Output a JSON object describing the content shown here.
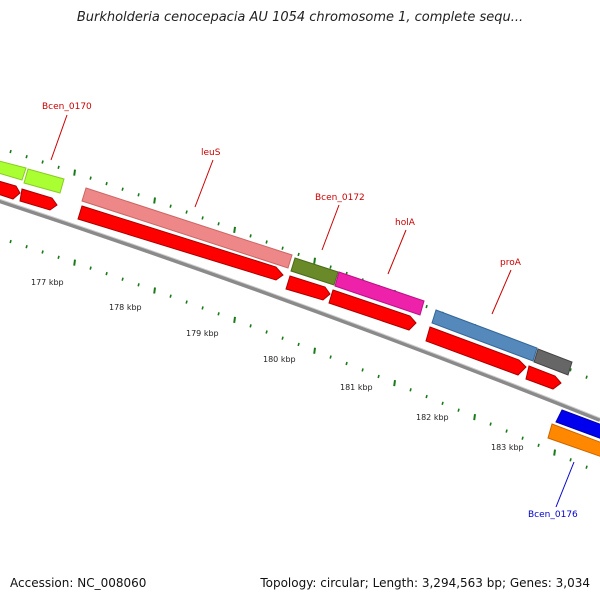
{
  "title": "Burkholderia cenocepacia AU 1054 chromosome 1, complete sequ...",
  "footer": {
    "accession_label": "Accession:",
    "accession": "NC_008060",
    "topology_label": "Topology:",
    "topology": "circular",
    "length_label": "Length:",
    "length": "3,294,563 bp",
    "genes_label": "Genes:",
    "genes": "3,034"
  },
  "ruler": {
    "unit": "kbp",
    "labels": [
      "177 kbp",
      "178 kbp",
      "179 kbp",
      "180 kbp",
      "181 kbp",
      "182 kbp",
      "183 kbp"
    ]
  },
  "gene_labels": [
    {
      "name": "Bcen_0170",
      "color": "#cc0000"
    },
    {
      "name": "leuS",
      "color": "#cc0000"
    },
    {
      "name": "Bcen_0172",
      "color": "#cc0000"
    },
    {
      "name": "holA",
      "color": "#cc0000"
    },
    {
      "name": "proA",
      "color": "#cc0000"
    },
    {
      "name": "Bcen_0176",
      "color": "#0000cc"
    }
  ],
  "colors": {
    "backbone": "#888888",
    "cds_arrow": "#ff0000",
    "tick_green": "#1a7a1a",
    "gene_Bcen_0170": "#aaff33",
    "gene_leuS": "#ee8888",
    "gene_Bcen_0172": "#6a8a2a",
    "gene_holA": "#ee22aa",
    "gene_proA": "#5588bb",
    "gene_dark": "#666666",
    "gene_blue": "#0000ee",
    "gene_orange": "#ff8800"
  }
}
